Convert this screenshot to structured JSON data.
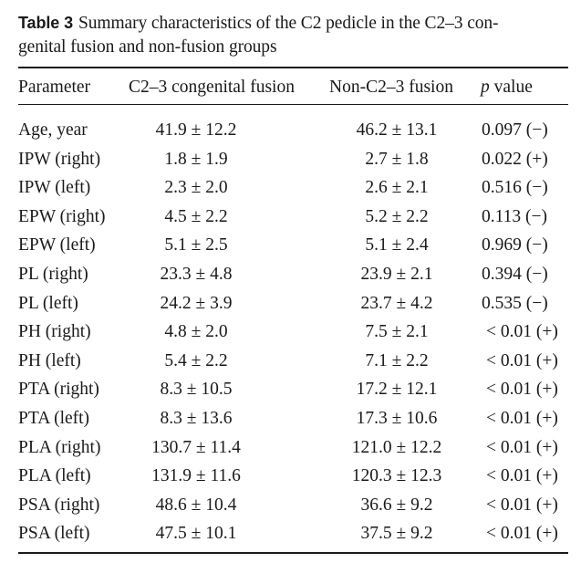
{
  "caption": {
    "label": "Table 3",
    "text_line1": "Summary characteristics of the C2 pedicle in the C2–3 con-",
    "text_line2": "genital fusion and non-fusion groups"
  },
  "table": {
    "headers": {
      "parameter": "Parameter",
      "fusion": "C2–3 congenital fusion",
      "nonfusion": "Non-C2–3 fusion",
      "p_italic": "p",
      "p_rest": " value"
    },
    "rows": [
      {
        "param": "Age, year",
        "fusion": "41.9 ± 12.2",
        "nonfusion": "46.2 ± 13.1",
        "p": "0.097 (−)"
      },
      {
        "param": "IPW (right)",
        "fusion": "1.8 ± 1.9",
        "nonfusion": "2.7 ± 1.8",
        "p": "0.022 (+)"
      },
      {
        "param": "IPW (left)",
        "fusion": "2.3 ± 2.0",
        "nonfusion": "2.6 ± 2.1",
        "p": "0.516 (−)"
      },
      {
        "param": "EPW (right)",
        "fusion": "4.5 ± 2.2",
        "nonfusion": "5.2 ± 2.2",
        "p": "0.113 (−)"
      },
      {
        "param": "EPW (left)",
        "fusion": "5.1 ± 2.5",
        "nonfusion": "5.1 ± 2.4",
        "p": "0.969 (−)"
      },
      {
        "param": "PL (right)",
        "fusion": "23.3 ± 4.8",
        "nonfusion": "23.9 ± 2.1",
        "p": "0.394 (−)"
      },
      {
        "param": "PL (left)",
        "fusion": "24.2 ± 3.9",
        "nonfusion": "23.7 ± 4.2",
        "p": "0.535 (−)"
      },
      {
        "param": "PH (right)",
        "fusion": "4.8 ± 2.0",
        "nonfusion": "7.5 ± 2.1",
        "p": "< 0.01 (+)"
      },
      {
        "param": "PH (left)",
        "fusion": "5.4 ± 2.2",
        "nonfusion": "7.1 ± 2.2",
        "p": "< 0.01 (+)"
      },
      {
        "param": "PTA (right)",
        "fusion": "8.3 ± 10.5",
        "nonfusion": "17.2 ± 12.1",
        "p": "< 0.01 (+)"
      },
      {
        "param": "PTA (left)",
        "fusion": "8.3 ± 13.6",
        "nonfusion": "17.3 ± 10.6",
        "p": "< 0.01 (+)"
      },
      {
        "param": "PLA (right)",
        "fusion": "130.7 ± 11.4",
        "nonfusion": "121.0 ± 12.2",
        "p": "< 0.01 (+)"
      },
      {
        "param": "PLA (left)",
        "fusion": "131.9 ± 11.6",
        "nonfusion": "120.3 ± 12.3",
        "p": "< 0.01 (+)"
      },
      {
        "param": "PSA (right)",
        "fusion": "48.6 ± 10.4",
        "nonfusion": "36.6 ± 9.2",
        "p": "< 0.01 (+)"
      },
      {
        "param": "PSA (left)",
        "fusion": "47.5 ± 10.1",
        "nonfusion": "37.5 ± 9.2",
        "p": "< 0.01 (+)"
      }
    ]
  }
}
